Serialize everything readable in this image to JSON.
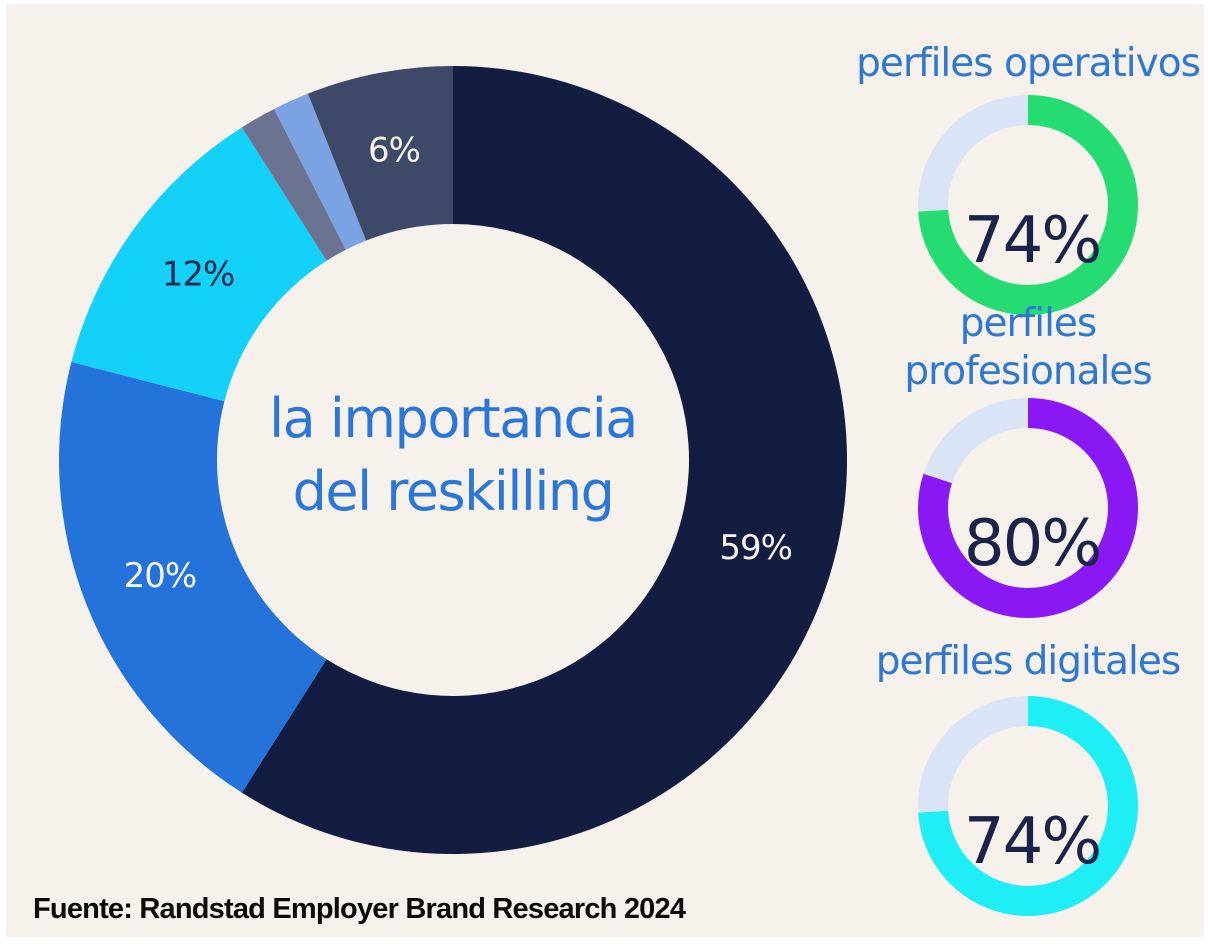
{
  "panel": {
    "background": "#f6f1eb",
    "page_background": "#ffffff"
  },
  "chart_data": [
    {
      "type": "pie",
      "variant": "donut",
      "title": "la importancia del reskilling",
      "center_title_lines": [
        "la importancia",
        "del reskilling"
      ],
      "center_title_color": "#2b77d9",
      "unit": "%",
      "start_angle_deg": 0,
      "direction": "clockwise",
      "slices": [
        {
          "label": "59%",
          "value": 59,
          "color": "#121d41",
          "label_color": "#f7f3ec"
        },
        {
          "label": "20%",
          "value": 20,
          "color": "#2473da",
          "label_color": "#f7f3ec"
        },
        {
          "label": "12%",
          "value": 12,
          "color": "#14d1fa",
          "label_color": "#192a4e"
        },
        {
          "label": "",
          "value": 1.5,
          "color": "#6b7390",
          "label_color": ""
        },
        {
          "label": "",
          "value": 1.5,
          "color": "#7ba3e4",
          "label_color": ""
        },
        {
          "label": "6%",
          "value": 6,
          "color": "#3d4966",
          "label_color": "#f7f3ec"
        }
      ]
    },
    {
      "type": "donut-gauge",
      "title_lines": [
        "perfiles operativos"
      ],
      "title_color": "#2e77d3",
      "value": 74,
      "label": "74%",
      "value_color": "#1a2349",
      "color": "#25dc72",
      "track_color": "#d9e4f6"
    },
    {
      "type": "donut-gauge",
      "title_lines": [
        "perfiles",
        "profesionales"
      ],
      "title_color": "#2e77d3",
      "value": 80,
      "label": "80%",
      "value_color": "#1a2349",
      "color": "#8a18f5",
      "track_color": "#d9e4f6"
    },
    {
      "type": "donut-gauge",
      "title_lines": [
        "perfiles digitales"
      ],
      "title_color": "#2e77d3",
      "value": 74,
      "label": "74%",
      "value_color": "#1a2349",
      "color": "#1feef7",
      "track_color": "#d9e4f6"
    }
  ],
  "footer": {
    "text": "Fuente: Randstad Employer Brand Research 2024",
    "color": "#0b0b0b"
  }
}
